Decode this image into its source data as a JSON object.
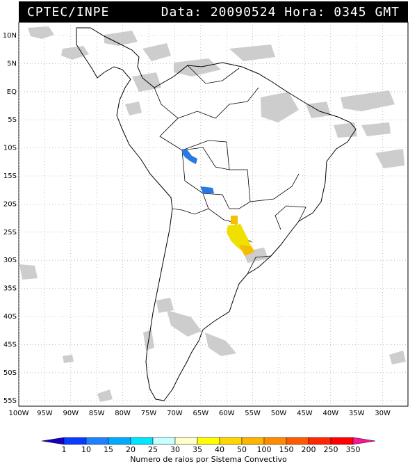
{
  "header": {
    "source": "CPTEC/INPE",
    "datetime": "Data: 20090524 Hora: 0345 GMT"
  },
  "map": {
    "lat_labels": [
      "10N",
      "5N",
      "EQ",
      "5S",
      "10S",
      "15S",
      "20S",
      "25S",
      "30S",
      "35S",
      "40S",
      "45S",
      "50S",
      "55S"
    ],
    "lon_labels": [
      "100W",
      "95W",
      "90W",
      "85W",
      "80W",
      "75W",
      "70W",
      "65W",
      "60W",
      "55W",
      "50W",
      "45W",
      "40W",
      "35W",
      "30W"
    ],
    "cloud_color": "#c8c8c8",
    "cell_blue_color": "#2a78e4",
    "cell_yellow_color": "#f0e000",
    "cell_orange_color": "#f5bf00"
  },
  "legend": {
    "title": "Numero de raios por Sistema Convectivo",
    "values": [
      "1",
      "10",
      "15",
      "20",
      "25",
      "30",
      "35",
      "40",
      "50",
      "100",
      "150",
      "200",
      "250",
      "350"
    ],
    "colors": [
      "#1400c8",
      "#0a3cff",
      "#1e82ff",
      "#00aaff",
      "#00e6ff",
      "#c8ffff",
      "#ffffc8",
      "#ffff00",
      "#ffd700",
      "#ffb400",
      "#ff8c00",
      "#ff5a00",
      "#ff2800",
      "#ff0000",
      "#ff1493"
    ]
  }
}
